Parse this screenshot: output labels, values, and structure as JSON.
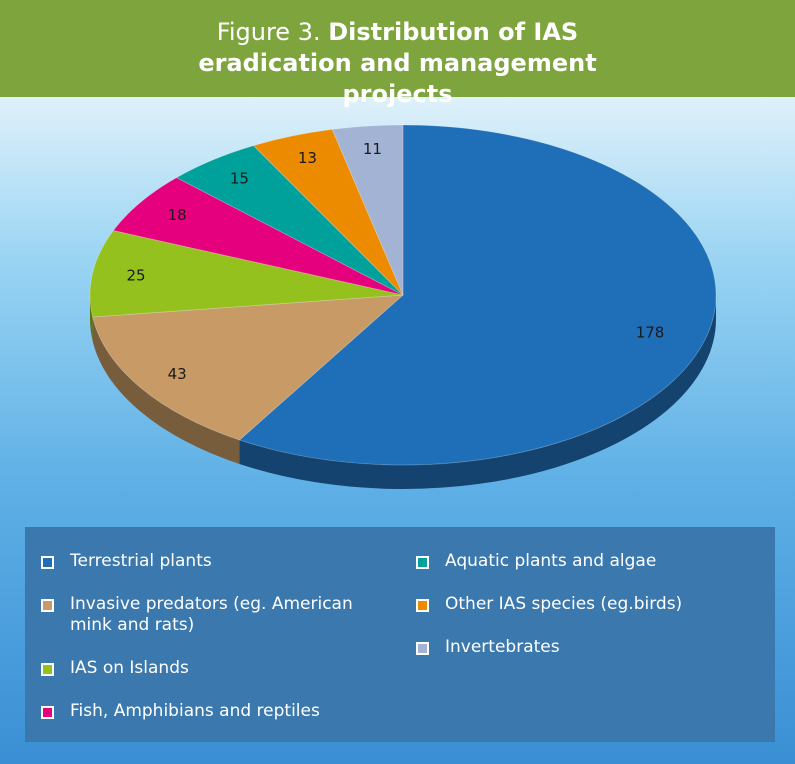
{
  "chart_data": {
    "type": "pie",
    "title_prefix": "Figure 3.",
    "title": "Distribution of IAS eradication and management projects",
    "categories": [
      "Terrestrial plants",
      "Invasive predators (eg. American mink and rats)",
      "IAS on Islands",
      "Fish, Amphibians and reptiles",
      "Aquatic plants and algae",
      "Other IAS species (eg.birds)",
      "Invertebrates"
    ],
    "values": [
      178,
      43,
      25,
      18,
      15,
      13,
      11
    ],
    "colors": [
      "#1f6fb8",
      "#c89b66",
      "#95c11f",
      "#e5007d",
      "#00a19a",
      "#ec8b00",
      "#a3b3d3"
    ],
    "start_angle": "top",
    "direction": "clockwise",
    "legend": "bottom",
    "three_d": true
  }
}
